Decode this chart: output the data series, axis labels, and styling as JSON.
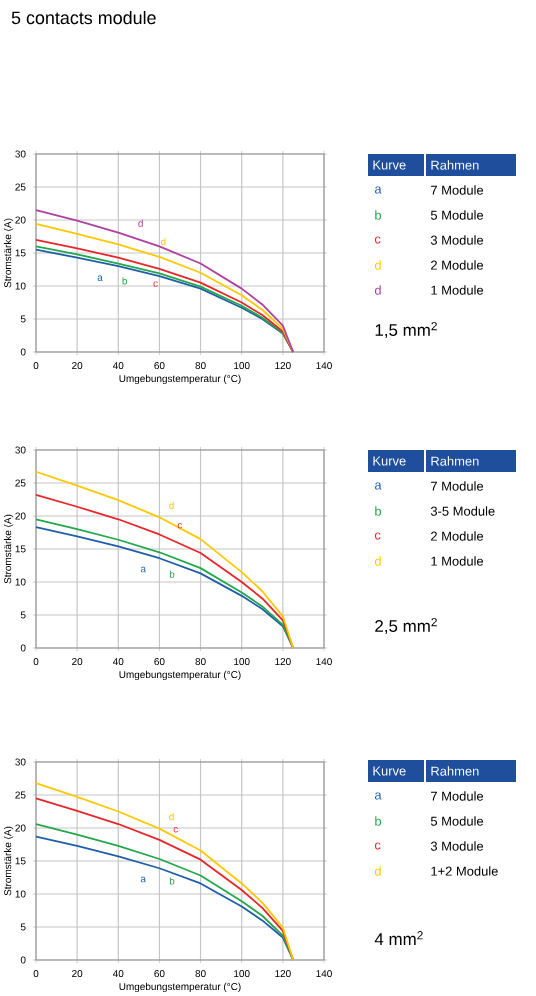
{
  "chart_data": [
    {
      "type": "line",
      "title": "5 contacts module",
      "xlabel": "Umgebungstemperatur (°C)",
      "ylabel": "Stromstärke (A)",
      "xlim": [
        0,
        140
      ],
      "ylim": [
        0,
        30
      ],
      "xticks": [
        0,
        20,
        40,
        60,
        80,
        100,
        120,
        140
      ],
      "yticks": [
        0,
        5,
        10,
        15,
        20,
        25,
        30
      ],
      "grid": true,
      "legend": "right",
      "legend_title": "Kurve",
      "x": [
        0,
        20,
        40,
        60,
        80,
        100,
        110,
        120,
        125
      ],
      "series": [
        {
          "name": "7 Module",
          "color": "#1f5fa8",
          "values": [
            15.5,
            14.3,
            13.0,
            11.5,
            9.6,
            6.7,
            5.0,
            2.8,
            0
          ]
        },
        {
          "name": "5 Module",
          "color": "#22a84a",
          "values": [
            16.0,
            14.8,
            13.4,
            11.9,
            9.9,
            7.0,
            5.2,
            2.9,
            0
          ]
        },
        {
          "name": "3 Module",
          "color": "#e8262a",
          "values": [
            17.0,
            15.7,
            14.3,
            12.6,
            10.5,
            7.5,
            5.6,
            3.1,
            0
          ]
        },
        {
          "name": "2 Module",
          "color": "#ffc800",
          "values": [
            19.4,
            17.9,
            16.3,
            14.4,
            12.0,
            8.6,
            6.4,
            3.5,
            0
          ]
        },
        {
          "name": "1 Module",
          "color": "#b040a0",
          "values": [
            21.5,
            19.9,
            18.1,
            16.0,
            13.4,
            9.6,
            7.2,
            4.0,
            0
          ]
        }
      ],
      "annotations": [
        {
          "text": "a",
          "x": 35,
          "y": 13.3
        },
        {
          "text": "b",
          "x": 47,
          "y": 12.9
        },
        {
          "text": "c",
          "x": 62,
          "y": 12.4
        },
        {
          "text": "d",
          "x": 58,
          "y": 14.6
        },
        {
          "text": "d",
          "x": 47,
          "y": 17.4
        },
        "Rahmen",
        "1,5 mm$^{2}$"
      ]
    },
    {
      "type": "line",
      "xlabel": "Umgebungstemperatur (°C)",
      "ylabel": "Stromstärke (A)",
      "xlim": [
        0,
        140
      ],
      "ylim": [
        0,
        30
      ],
      "xticks": [
        0,
        20,
        40,
        60,
        80,
        100,
        120,
        140
      ],
      "yticks": [
        0,
        5,
        10,
        15,
        20,
        25,
        30
      ],
      "grid": true,
      "legend": "right",
      "legend_title": "Kurve",
      "x": [
        0,
        20,
        40,
        60,
        80,
        100,
        110,
        120,
        125
      ],
      "series": [
        {
          "name": "7 Module",
          "color": "#1f5fa8",
          "values": [
            18.3,
            16.9,
            15.4,
            13.6,
            11.3,
            7.9,
            5.9,
            3.3,
            0
          ]
        },
        {
          "name": "3-5 Module",
          "color": "#22a84a",
          "values": [
            19.5,
            18.0,
            16.4,
            14.5,
            12.1,
            8.4,
            6.3,
            3.5,
            0
          ]
        },
        {
          "name": "2 Module",
          "color": "#e8262a",
          "values": [
            23.2,
            21.4,
            19.5,
            17.2,
            14.4,
            10.0,
            7.5,
            4.2,
            0
          ]
        },
        {
          "name": "1 Module",
          "color": "#ffc800",
          "values": [
            26.7,
            24.6,
            22.4,
            19.8,
            16.5,
            11.5,
            8.6,
            4.8,
            0
          ]
        }
      ],
      "annotations": [
        {
          "text": "a",
          "x": 56,
          "y": 14.0
        },
        {
          "text": "b",
          "x": 70,
          "y": 13.3
        },
        {
          "text": "c",
          "x": 66,
          "y": 16.4
        },
        {
          "text": "d",
          "x": 62,
          "y": 19.5
        },
        "Rahmen",
        "2,5 mm$^{2}$"
      ]
    },
    {
      "type": "line",
      "xlabel": "Umgebungstemperatur (°C)",
      "ylabel": "Stromstärke (A)",
      "xlim": [
        0,
        140
      ],
      "ylim": [
        0,
        30
      ],
      "xticks": [
        0,
        20,
        40,
        60,
        80,
        100,
        120,
        140
      ],
      "yticks": [
        0,
        5,
        10,
        15,
        20,
        25,
        30
      ],
      "grid": true,
      "legend": "right",
      "legend_title": "Kurve",
      "x": [
        0,
        20,
        40,
        60,
        80,
        100,
        110,
        120,
        125
      ],
      "series": [
        {
          "name": "7 Module",
          "color": "#1f5fa8",
          "values": [
            18.7,
            17.3,
            15.7,
            13.9,
            11.6,
            8.1,
            6.0,
            3.4,
            0
          ]
        },
        {
          "name": "5 Module",
          "color": "#22a84a",
          "values": [
            20.6,
            19.0,
            17.3,
            15.3,
            12.8,
            8.9,
            6.7,
            3.7,
            0
          ]
        },
        {
          "name": "3 Module",
          "color": "#e8262a",
          "values": [
            24.5,
            22.6,
            20.6,
            18.2,
            15.2,
            10.6,
            7.9,
            4.4,
            0
          ]
        },
        {
          "name": "1+2 Module",
          "color": "#ffc800",
          "values": [
            26.8,
            24.7,
            22.5,
            19.9,
            16.6,
            11.6,
            8.7,
            4.9,
            0
          ]
        }
      ],
      "annotations": [
        {
          "text": "a",
          "x": 56,
          "y": 14.3
        },
        {
          "text": "b",
          "x": 70,
          "y": 14.1
        },
        {
          "text": "c",
          "x": 64,
          "y": 17.6
        },
        {
          "text": "d",
          "x": 62,
          "y": 19.6
        },
        "Rahmen",
        "4 mm$^{2}$"
      ]
    }
  ]
}
